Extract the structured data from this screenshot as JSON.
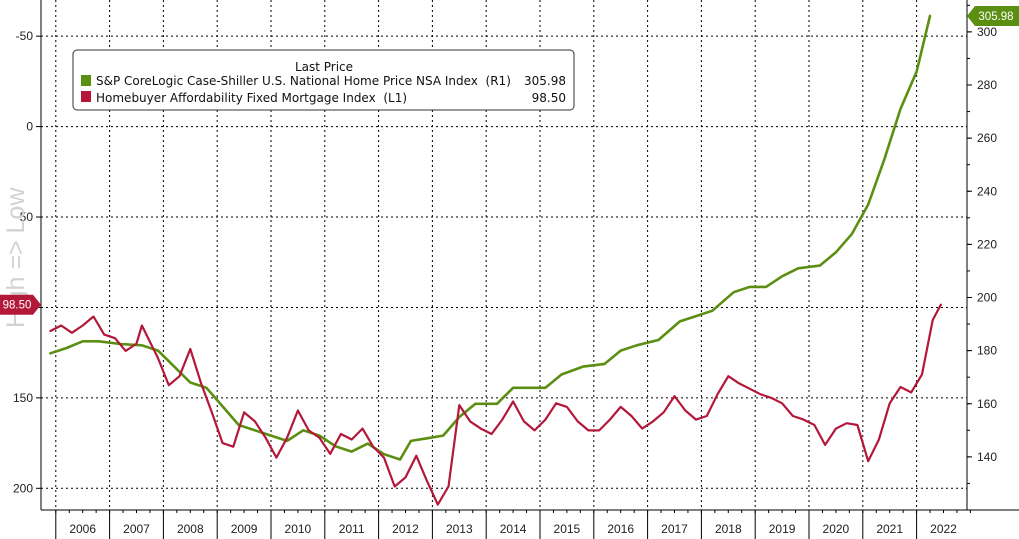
{
  "chart_data": {
    "type": "line",
    "left_axis_ticks": [
      "-50",
      "0",
      "50",
      "100",
      "150",
      "200"
    ],
    "right_axis_ticks": [
      "140",
      "160",
      "180",
      "200",
      "220",
      "240",
      "260",
      "280",
      "300"
    ],
    "left_axis": {
      "min": -70,
      "max": 212,
      "inverted": true,
      "note": "High => Low"
    },
    "right_axis": {
      "min": 120,
      "max": 312
    },
    "x_years": [
      "2006",
      "2007",
      "2008",
      "2009",
      "2010",
      "2011",
      "2012",
      "2013",
      "2014",
      "2015",
      "2016",
      "2017",
      "2018",
      "2019",
      "2020",
      "2021",
      "2022"
    ],
    "grid": true,
    "legend": {
      "header": "Last Price",
      "placement": "top-left",
      "entries": [
        {
          "name": "S&P CoreLogic Case-Shiller U.S. National Home Price NSA Index  (R1)",
          "value": "305.98",
          "color": "#5b8f12"
        },
        {
          "name": "Homebuyer Affordability Fixed Mortgage Index  (L1)",
          "value": "98.50",
          "color": "#b3183a"
        }
      ]
    },
    "series": [
      {
        "name": "S&P CoreLogic Case-Shiller U.S. National Home Price NSA Index (R1)",
        "axis": "right",
        "color": "#5b8f12",
        "last_value": "305.98",
        "points": [
          [
            2005.9,
            179
          ],
          [
            2006.2,
            181
          ],
          [
            2006.5,
            183.5
          ],
          [
            2006.8,
            183.5
          ],
          [
            2007.2,
            182.5
          ],
          [
            2007.6,
            182
          ],
          [
            2007.9,
            180
          ],
          [
            2008.2,
            174
          ],
          [
            2008.5,
            168
          ],
          [
            2008.8,
            166
          ],
          [
            2009.1,
            159
          ],
          [
            2009.4,
            152
          ],
          [
            2009.7,
            150
          ],
          [
            2010.0,
            148
          ],
          [
            2010.3,
            146
          ],
          [
            2010.6,
            150
          ],
          [
            2010.9,
            148
          ],
          [
            2011.2,
            144
          ],
          [
            2011.5,
            142
          ],
          [
            2011.8,
            145
          ],
          [
            2012.1,
            141
          ],
          [
            2012.4,
            139
          ],
          [
            2012.6,
            146
          ],
          [
            2012.9,
            147
          ],
          [
            2013.2,
            148
          ],
          [
            2013.5,
            155
          ],
          [
            2013.8,
            160
          ],
          [
            2014.2,
            160
          ],
          [
            2014.5,
            166
          ],
          [
            2014.8,
            166
          ],
          [
            2015.1,
            166
          ],
          [
            2015.4,
            171
          ],
          [
            2015.8,
            174
          ],
          [
            2016.2,
            175
          ],
          [
            2016.5,
            180
          ],
          [
            2016.8,
            182
          ],
          [
            2017.2,
            184
          ],
          [
            2017.6,
            191
          ],
          [
            2017.9,
            193
          ],
          [
            2018.2,
            195
          ],
          [
            2018.6,
            202
          ],
          [
            2018.9,
            204
          ],
          [
            2019.2,
            204
          ],
          [
            2019.5,
            208
          ],
          [
            2019.8,
            211
          ],
          [
            2020.2,
            212
          ],
          [
            2020.5,
            217
          ],
          [
            2020.8,
            224
          ],
          [
            2021.1,
            235
          ],
          [
            2021.4,
            252
          ],
          [
            2021.7,
            271
          ],
          [
            2022.0,
            285
          ],
          [
            2022.25,
            306
          ]
        ]
      },
      {
        "name": "Homebuyer Affordability Fixed Mortgage Index (L1)",
        "axis": "left",
        "color": "#b3183a",
        "last_value": "98.50",
        "points": [
          [
            2005.9,
            113
          ],
          [
            2006.1,
            110
          ],
          [
            2006.3,
            114
          ],
          [
            2006.5,
            110
          ],
          [
            2006.7,
            105
          ],
          [
            2006.9,
            115
          ],
          [
            2007.1,
            117
          ],
          [
            2007.3,
            124
          ],
          [
            2007.5,
            120
          ],
          [
            2007.6,
            110
          ],
          [
            2007.8,
            122
          ],
          [
            2007.9,
            128
          ],
          [
            2008.1,
            143
          ],
          [
            2008.3,
            138
          ],
          [
            2008.5,
            123
          ],
          [
            2008.7,
            142
          ],
          [
            2008.9,
            158
          ],
          [
            2009.1,
            175
          ],
          [
            2009.3,
            177
          ],
          [
            2009.5,
            158
          ],
          [
            2009.7,
            163
          ],
          [
            2009.9,
            172
          ],
          [
            2010.1,
            183
          ],
          [
            2010.3,
            172
          ],
          [
            2010.5,
            157
          ],
          [
            2010.7,
            168
          ],
          [
            2010.9,
            172
          ],
          [
            2011.1,
            181
          ],
          [
            2011.3,
            170
          ],
          [
            2011.5,
            173
          ],
          [
            2011.7,
            167
          ],
          [
            2011.9,
            177
          ],
          [
            2012.1,
            183
          ],
          [
            2012.3,
            199
          ],
          [
            2012.5,
            194
          ],
          [
            2012.7,
            182
          ],
          [
            2012.9,
            196
          ],
          [
            2013.1,
            209
          ],
          [
            2013.3,
            199
          ],
          [
            2013.5,
            154
          ],
          [
            2013.7,
            163
          ],
          [
            2013.9,
            167
          ],
          [
            2014.1,
            170
          ],
          [
            2014.3,
            162
          ],
          [
            2014.5,
            152
          ],
          [
            2014.7,
            163
          ],
          [
            2014.9,
            168
          ],
          [
            2015.1,
            162
          ],
          [
            2015.3,
            153
          ],
          [
            2015.5,
            155
          ],
          [
            2015.7,
            163
          ],
          [
            2015.9,
            168
          ],
          [
            2016.1,
            168
          ],
          [
            2016.3,
            162
          ],
          [
            2016.5,
            155
          ],
          [
            2016.7,
            160
          ],
          [
            2016.9,
            167
          ],
          [
            2017.1,
            163
          ],
          [
            2017.3,
            158
          ],
          [
            2017.5,
            149
          ],
          [
            2017.7,
            157
          ],
          [
            2017.9,
            162
          ],
          [
            2018.1,
            160
          ],
          [
            2018.3,
            148
          ],
          [
            2018.5,
            138
          ],
          [
            2018.7,
            142
          ],
          [
            2018.9,
            145
          ],
          [
            2019.1,
            148
          ],
          [
            2019.3,
            150
          ],
          [
            2019.5,
            153
          ],
          [
            2019.7,
            160
          ],
          [
            2019.9,
            162
          ],
          [
            2020.1,
            165
          ],
          [
            2020.3,
            176
          ],
          [
            2020.5,
            167
          ],
          [
            2020.7,
            164
          ],
          [
            2020.9,
            165
          ],
          [
            2021.1,
            185
          ],
          [
            2021.3,
            173
          ],
          [
            2021.5,
            153
          ],
          [
            2021.7,
            144
          ],
          [
            2021.9,
            147
          ],
          [
            2022.1,
            137
          ],
          [
            2022.3,
            107
          ],
          [
            2022.45,
            98.5
          ]
        ]
      }
    ]
  }
}
